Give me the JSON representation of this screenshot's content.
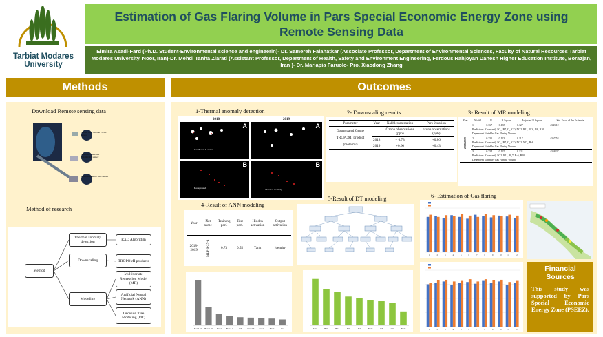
{
  "header": {
    "logo_text_line1": "Tarbiat Modares",
    "logo_text_line2": "University",
    "title": "Estimation of Gas Flaring Volume in Pars Special Economic Energy Zone using Remote Sensing Data",
    "authors": "Elmira Asadi-Fard (Ph.D. Student-Environmental science and engineerin)- Dr. Samereh Falahatkar (Associate Professor, Department of Environmental Sciences, Faculty of Natural Resources Tarbiat Modares University, Noor, Iran)-Dr. Mehdi Tanha Ziarati (Assistant Professor, Department of Health, Safety and Environment Engineering, Ferdous Rahjoyan Danesh Higher Education Institute, Borazjan, Iran )- Dr. Mariapia Faruolo- Pro. Xiaodong Zhang"
  },
  "methods": {
    "heading": "Methods",
    "download_caption": "Download Remote sensing data",
    "satellites": [
      "Suomi NPP satellite VIIRS sensor",
      "Sentinel-5 satellite TROPOMI sensor",
      "Landsat satellite OLI sensor"
    ],
    "research_caption": "Method of research",
    "diagram": {
      "root": "Method",
      "branches": [
        "Thermal anomaly detection",
        "Downscaling",
        "Modeling"
      ],
      "leaves": [
        "RXD Algorithm",
        "TROPOMI products",
        "Multivariate Regression Model (MR)",
        "Artificial Neural Network (ANN)",
        "Decision Tree Modeling (DT)"
      ]
    }
  },
  "outcomes": {
    "heading": "Outcomes",
    "thermal": {
      "caption": "1-Thermal anomaly detection",
      "years": [
        "2018",
        "2019"
      ],
      "panel_letters": [
        "A",
        "A",
        "B",
        "B"
      ],
      "legend": [
        "Gas Flares Location",
        "Background",
        "Thermal anomaly"
      ]
    },
    "downscaling": {
      "caption": "2- Downscaling results",
      "headers": [
        "Parameter",
        "Year",
        "Nakhlestan station",
        "Pars 2 station"
      ],
      "subheaders": [
        "Ozone observations (ppb)",
        "ozone observations (ppb)"
      ],
      "parameter": "Downscaled Ozone TROPOMI product (mole/m²)",
      "rows": [
        {
          "year": "2018",
          "nakhlestan": "+ 0.73",
          "pars2": "+0.86"
        },
        {
          "year": "2019",
          "nakhlestan": "+0.60",
          "pars2": "+0.43"
        }
      ]
    },
    "mr": {
      "caption": "3- Result of MR modeling",
      "headers": [
        "Year",
        "Model",
        "R",
        "R Square",
        "Adjusted R Square",
        "Std. Error of the Estimate"
      ],
      "year_label": "2018-2019",
      "rows": [
        {
          "model": "1",
          "r": "0.367",
          "r2": "0.135",
          "adj": "0.127",
          "se": "4343.12",
          "pred": "Predictors: (Constant), SO₂, B7, O₃, CO, NO2, B11, NO₂, B6, B10",
          "dep": "Dependent Variable: Gas Flaring Volume"
        },
        {
          "model": "2",
          "r": "0.351",
          "r2": "0.123",
          "adj": "0.117",
          "se": "4367.54",
          "pred": "Predictors: (Constant), SO₂, B7, O₃, CO, NO2, NO₂, B-6",
          "dep": "Dependent Variable: Gas Flaring Volume"
        },
        {
          "model": "3",
          "r": "0.354",
          "r2": "0.125",
          "adj": "0.121",
          "se": "4358.37",
          "pred": "Predictors: (Constant), SO2, B11, B_7, B-6, B10",
          "dep": "Dependent Variable: Gas Flaring Volume"
        }
      ]
    },
    "ann": {
      "caption": "4-Result of ANN modeling",
      "headers": [
        "Year",
        "Net name",
        "Training perf.",
        "Test perf.",
        "Hidden activation",
        "Output activation"
      ],
      "row": {
        "year": "2018-2019",
        "net": "MLP 9-27-1",
        "train": "0.73",
        "test": "0.55",
        "hidden": "Tanh",
        "output": "Identity"
      }
    },
    "dt": {
      "caption": "5-Result of DT modeling"
    },
    "estimation": {
      "caption": "6- Estimation of Gas flaring"
    }
  },
  "financial": {
    "title": "Financial Sources",
    "text": "This study was supported by Pars Special Economic Energy Zone (PSEEZ)."
  },
  "chart_data": [
    {
      "type": "bar",
      "categories": [
        "Band 11",
        "Band 10",
        "NO2",
        "Band 7",
        "O3",
        "Band 6",
        "SO2",
        "NO2",
        "CO"
      ],
      "values": [
        100,
        40,
        25,
        20,
        18,
        17,
        16,
        15,
        13
      ],
      "ylim": [
        0,
        110
      ]
    },
    {
      "type": "bar",
      "categories": [
        "SO2",
        "B10",
        "B11",
        "B6",
        "B7",
        "NO2",
        "O3",
        "CO",
        "NO2"
      ],
      "values": [
        100,
        78,
        72,
        62,
        58,
        55,
        52,
        48,
        30
      ],
      "ylim": [
        0,
        110
      ]
    },
    {
      "type": "bar",
      "categories": [
        "1",
        "2",
        "3",
        "4",
        "5",
        "6",
        "7",
        "8",
        "9",
        "10",
        "11",
        "12"
      ],
      "series": [
        {
          "values": [
            80,
            82,
            78,
            84,
            80,
            76,
            85,
            82,
            79,
            83,
            81,
            78
          ]
        },
        {
          "values": [
            85,
            80,
            84,
            82,
            86,
            83,
            80,
            86,
            84,
            82,
            85,
            83
          ]
        }
      ],
      "ylim": [
        0,
        100
      ]
    },
    {
      "type": "bar",
      "categories": [
        "1",
        "2",
        "3",
        "4",
        "5",
        "6",
        "7",
        "8",
        "9",
        "10",
        "11",
        "12"
      ],
      "series": [
        {
          "values": [
            75,
            78,
            80,
            74,
            77,
            79,
            76,
            81,
            78,
            80,
            74,
            77
          ]
        },
        {
          "values": [
            78,
            82,
            83,
            80,
            81,
            84,
            80,
            84,
            82,
            83,
            79,
            81
          ]
        }
      ],
      "ylim": [
        0,
        100
      ]
    }
  ]
}
